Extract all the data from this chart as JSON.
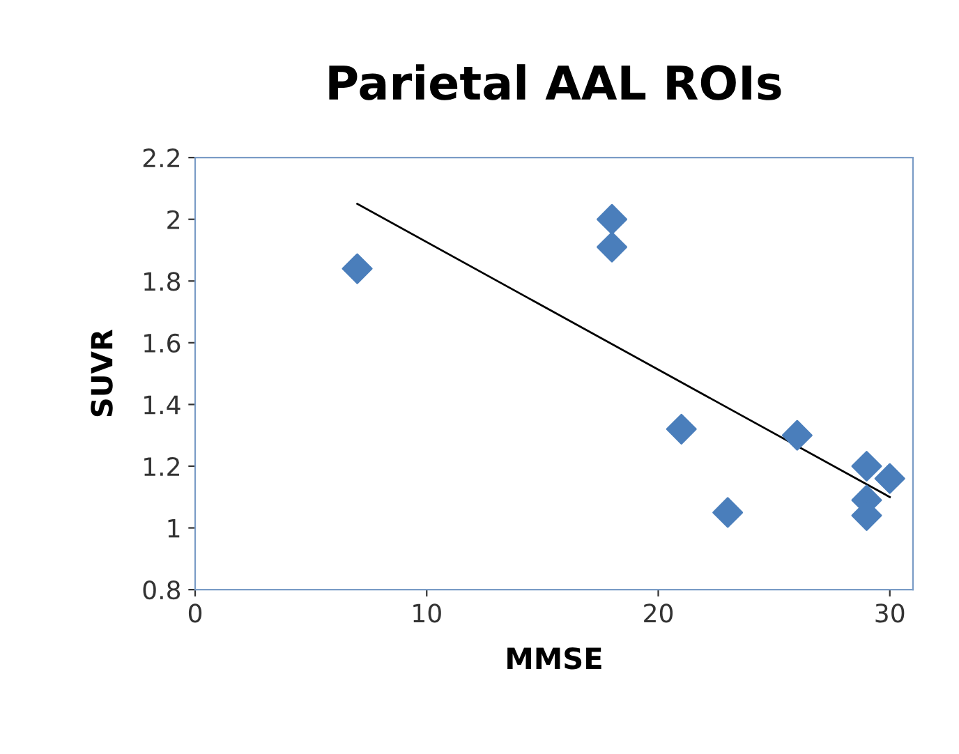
{
  "chart_data": {
    "type": "scatter",
    "title": "Parietal AAL ROIs",
    "xlabel": "MMSE",
    "ylabel": "SUVR",
    "series": [
      {
        "color": "#4a7ebb",
        "marker": "diamond",
        "x": [
          7,
          18,
          18,
          21,
          23,
          26,
          29,
          29,
          29,
          30
        ],
        "values": [
          1.84,
          2.0,
          1.91,
          1.32,
          1.05,
          1.3,
          1.2,
          1.09,
          1.04,
          1.16
        ]
      },
      {
        "type": "line",
        "color": "#000000",
        "marker": "none",
        "line_style": "solid",
        "x": [
          7,
          30
        ],
        "values": [
          2.05,
          1.1
        ]
      }
    ],
    "xlim": [
      0,
      31
    ],
    "xticks": [
      0,
      10,
      20,
      30
    ],
    "ylim": [
      0.8,
      2.2
    ],
    "yticks": [
      0.8,
      1,
      1.2,
      1.4,
      1.6,
      1.8,
      2,
      2.2
    ],
    "grid": false,
    "legend": false
  }
}
